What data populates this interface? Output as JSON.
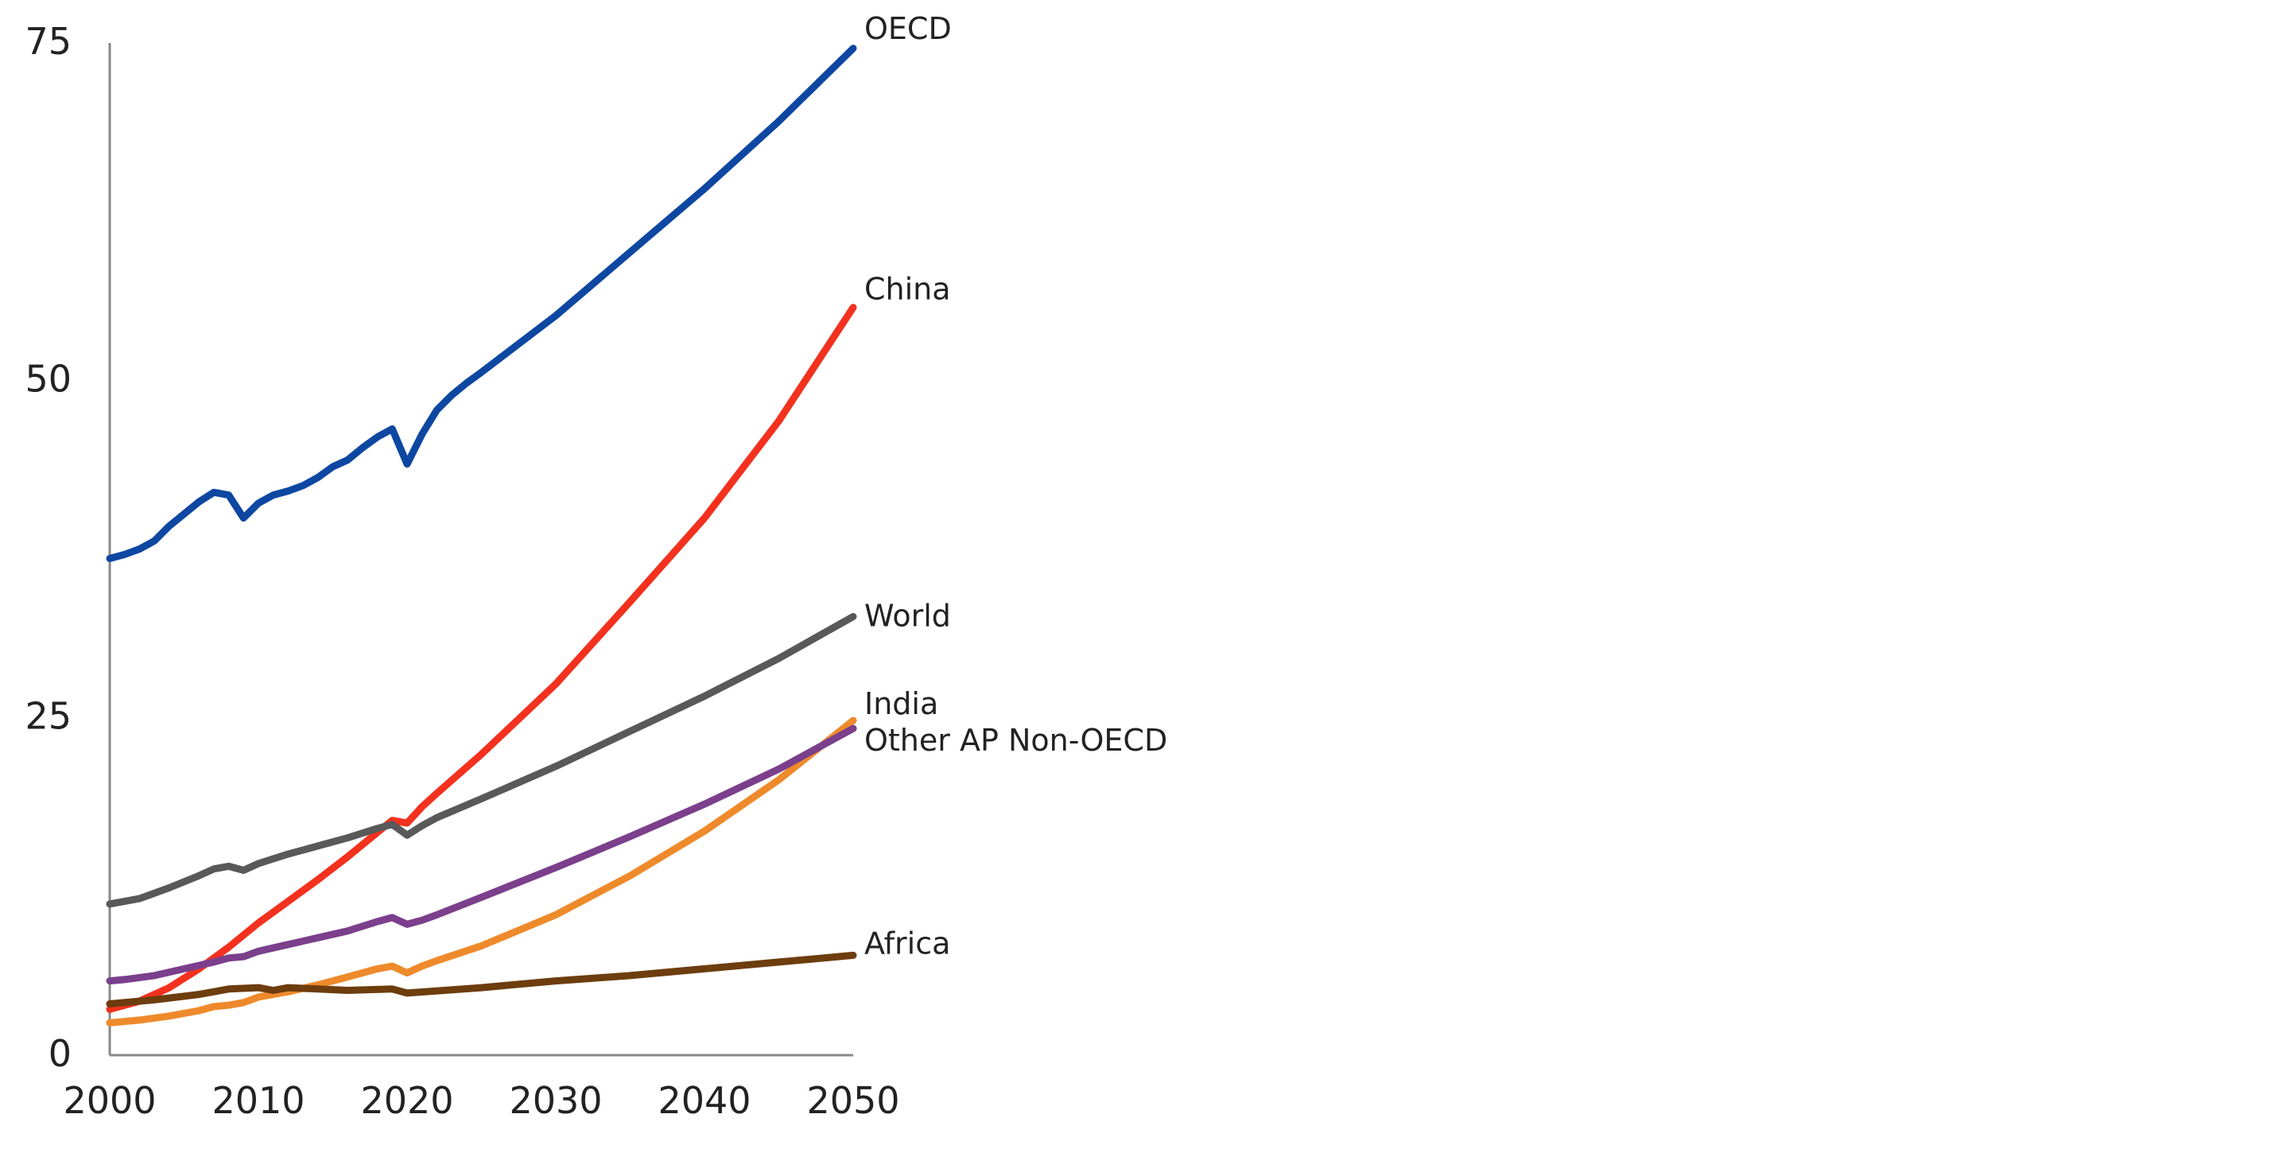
{
  "chart_data": {
    "type": "line",
    "title": "",
    "xlabel": "",
    "ylabel": "",
    "xlim": [
      2000,
      2050
    ],
    "ylim": [
      0,
      75
    ],
    "x_ticks": [
      2000,
      2010,
      2020,
      2030,
      2040,
      2050
    ],
    "y_ticks": [
      0,
      25,
      50,
      75
    ],
    "legend": "direct labels at line ends",
    "grid": false,
    "series": [
      {
        "name": "OECD",
        "color": "#0d47a1",
        "points": [
          [
            2000,
            36.8
          ],
          [
            2001,
            37.1
          ],
          [
            2002,
            37.5
          ],
          [
            2003,
            38.1
          ],
          [
            2004,
            39.2
          ],
          [
            2005,
            40.1
          ],
          [
            2006,
            41.0
          ],
          [
            2007,
            41.7
          ],
          [
            2008,
            41.5
          ],
          [
            2009,
            39.8
          ],
          [
            2010,
            40.9
          ],
          [
            2011,
            41.5
          ],
          [
            2012,
            41.8
          ],
          [
            2013,
            42.2
          ],
          [
            2014,
            42.8
          ],
          [
            2015,
            43.6
          ],
          [
            2016,
            44.1
          ],
          [
            2017,
            45.0
          ],
          [
            2018,
            45.8
          ],
          [
            2019,
            46.4
          ],
          [
            2020,
            43.8
          ],
          [
            2021,
            46.0
          ],
          [
            2022,
            47.8
          ],
          [
            2023,
            48.9
          ],
          [
            2024,
            49.8
          ],
          [
            2025,
            50.6
          ],
          [
            2030,
            54.8
          ],
          [
            2035,
            59.5
          ],
          [
            2040,
            64.2
          ],
          [
            2045,
            69.2
          ],
          [
            2050,
            74.6
          ]
        ]
      },
      {
        "name": "China",
        "color": "#f3311e",
        "points": [
          [
            2000,
            3.4
          ],
          [
            2002,
            4.0
          ],
          [
            2004,
            5.0
          ],
          [
            2006,
            6.4
          ],
          [
            2008,
            8.0
          ],
          [
            2010,
            9.8
          ],
          [
            2012,
            11.4
          ],
          [
            2014,
            13.0
          ],
          [
            2016,
            14.7
          ],
          [
            2018,
            16.5
          ],
          [
            2019,
            17.4
          ],
          [
            2020,
            17.2
          ],
          [
            2021,
            18.4
          ],
          [
            2022,
            19.4
          ],
          [
            2025,
            22.3
          ],
          [
            2030,
            27.5
          ],
          [
            2035,
            33.6
          ],
          [
            2040,
            39.8
          ],
          [
            2045,
            47.0
          ],
          [
            2050,
            55.4
          ]
        ]
      },
      {
        "name": "World",
        "color": "#595959",
        "points": [
          [
            2000,
            11.2
          ],
          [
            2002,
            11.6
          ],
          [
            2004,
            12.4
          ],
          [
            2006,
            13.3
          ],
          [
            2007,
            13.8
          ],
          [
            2008,
            14.0
          ],
          [
            2009,
            13.7
          ],
          [
            2010,
            14.2
          ],
          [
            2012,
            14.9
          ],
          [
            2014,
            15.5
          ],
          [
            2016,
            16.1
          ],
          [
            2018,
            16.8
          ],
          [
            2019,
            17.1
          ],
          [
            2020,
            16.3
          ],
          [
            2021,
            17.0
          ],
          [
            2022,
            17.6
          ],
          [
            2025,
            19.0
          ],
          [
            2030,
            21.4
          ],
          [
            2035,
            24.0
          ],
          [
            2040,
            26.6
          ],
          [
            2045,
            29.4
          ],
          [
            2050,
            32.5
          ]
        ]
      },
      {
        "name": "India",
        "color": "#ee8a2b",
        "points": [
          [
            2000,
            2.4
          ],
          [
            2002,
            2.6
          ],
          [
            2004,
            2.9
          ],
          [
            2006,
            3.3
          ],
          [
            2007,
            3.6
          ],
          [
            2008,
            3.7
          ],
          [
            2009,
            3.9
          ],
          [
            2010,
            4.3
          ],
          [
            2012,
            4.7
          ],
          [
            2014,
            5.2
          ],
          [
            2016,
            5.8
          ],
          [
            2018,
            6.4
          ],
          [
            2019,
            6.6
          ],
          [
            2020,
            6.1
          ],
          [
            2021,
            6.6
          ],
          [
            2022,
            7.0
          ],
          [
            2025,
            8.1
          ],
          [
            2030,
            10.4
          ],
          [
            2035,
            13.3
          ],
          [
            2040,
            16.6
          ],
          [
            2045,
            20.4
          ],
          [
            2050,
            24.8
          ]
        ]
      },
      {
        "name": "Other AP Non-OECD",
        "color": "#7b3f8c",
        "points": [
          [
            2000,
            5.5
          ],
          [
            2001,
            5.6
          ],
          [
            2003,
            5.9
          ],
          [
            2005,
            6.4
          ],
          [
            2007,
            6.9
          ],
          [
            2008,
            7.2
          ],
          [
            2009,
            7.3
          ],
          [
            2010,
            7.7
          ],
          [
            2012,
            8.2
          ],
          [
            2014,
            8.7
          ],
          [
            2016,
            9.2
          ],
          [
            2018,
            9.9
          ],
          [
            2019,
            10.2
          ],
          [
            2020,
            9.7
          ],
          [
            2021,
            10.0
          ],
          [
            2022,
            10.4
          ],
          [
            2025,
            11.7
          ],
          [
            2030,
            13.9
          ],
          [
            2035,
            16.2
          ],
          [
            2040,
            18.6
          ],
          [
            2045,
            21.2
          ],
          [
            2050,
            24.2
          ]
        ]
      },
      {
        "name": "Africa",
        "color": "#6d3d0e",
        "points": [
          [
            2000,
            3.8
          ],
          [
            2003,
            4.1
          ],
          [
            2006,
            4.5
          ],
          [
            2008,
            4.9
          ],
          [
            2010,
            5.0
          ],
          [
            2011,
            4.8
          ],
          [
            2012,
            5.0
          ],
          [
            2014,
            4.9
          ],
          [
            2016,
            4.8
          ],
          [
            2019,
            4.9
          ],
          [
            2020,
            4.6
          ],
          [
            2025,
            5.0
          ],
          [
            2030,
            5.5
          ],
          [
            2035,
            5.9
          ],
          [
            2040,
            6.4
          ],
          [
            2045,
            6.9
          ],
          [
            2050,
            7.4
          ]
        ]
      }
    ]
  }
}
